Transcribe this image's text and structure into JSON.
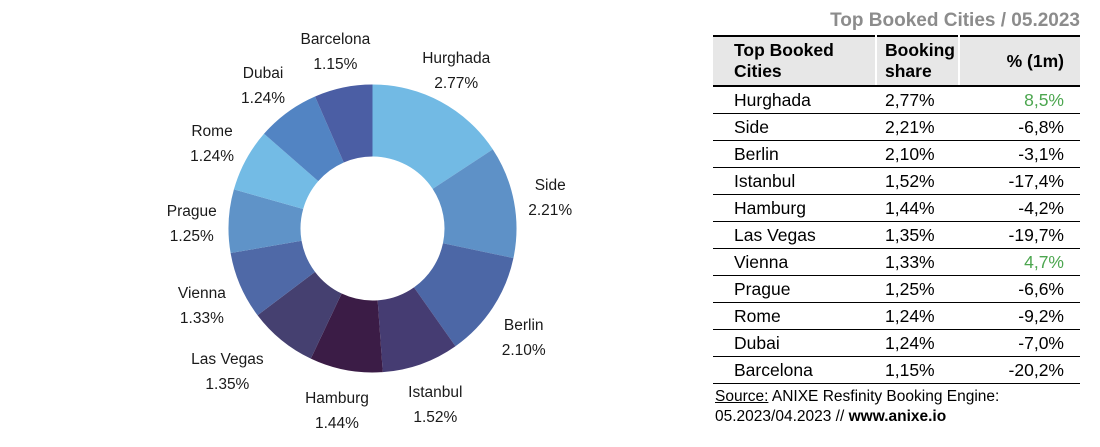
{
  "title": "Top Booked Cities / 05.2023",
  "chart_data": {
    "type": "pie",
    "subtype": "donut",
    "title": "",
    "categories": [
      "Hurghada",
      "Side",
      "Berlin",
      "Istanbul",
      "Hamburg",
      "Las Vegas",
      "Vienna",
      "Prague",
      "Rome",
      "Dubai",
      "Barcelona"
    ],
    "values": [
      2.77,
      2.21,
      2.1,
      1.52,
      1.44,
      1.35,
      1.33,
      1.25,
      1.24,
      1.24,
      1.15
    ],
    "labels": [
      "2.77%",
      "2.21%",
      "2.10%",
      "1.52%",
      "1.44%",
      "1.35%",
      "1.33%",
      "1.25%",
      "1.24%",
      "1.24%",
      "1.15%"
    ],
    "colors": [
      "#72BAE4",
      "#5E91C7",
      "#4C67A6",
      "#453C72",
      "#3B1C46",
      "#454070",
      "#4F69A7",
      "#5F93C8",
      "#73BBE5",
      "#5284C3",
      "#4B5EA4"
    ],
    "unit": "%",
    "start_angle_deg": 0,
    "direction": "clockwise",
    "hole_ratio": 0.5,
    "legend": "none"
  },
  "table": {
    "columns": [
      "Top Booked Cities",
      "Booking share",
      "% (1m)"
    ],
    "rows": [
      {
        "city": "Hurghada",
        "share": "2,77%",
        "change": "8,5%",
        "positive": true
      },
      {
        "city": "Side",
        "share": "2,21%",
        "change": "-6,8%",
        "positive": false
      },
      {
        "city": "Berlin",
        "share": "2,10%",
        "change": "-3,1%",
        "positive": false
      },
      {
        "city": "Istanbul",
        "share": "1,52%",
        "change": "-17,4%",
        "positive": false
      },
      {
        "city": "Hamburg",
        "share": "1,44%",
        "change": "-4,2%",
        "positive": false
      },
      {
        "city": "Las Vegas",
        "share": "1,35%",
        "change": "-19,7%",
        "positive": false
      },
      {
        "city": "Vienna",
        "share": "1,33%",
        "change": "4,7%",
        "positive": true
      },
      {
        "city": "Prague",
        "share": "1,25%",
        "change": "-6,6%",
        "positive": false
      },
      {
        "city": "Rome",
        "share": "1,24%",
        "change": "-9,2%",
        "positive": false
      },
      {
        "city": "Dubai",
        "share": "1,24%",
        "change": "-7,0%",
        "positive": false
      },
      {
        "city": "Barcelona",
        "share": "1,15%",
        "change": "-20,2%",
        "positive": false
      }
    ]
  },
  "source": {
    "label": "Source:",
    "text": " ANIXE Resfinity Booking Engine:",
    "line2": "05.2023/04.2023 // ",
    "website": "www.anixe.io"
  },
  "colors": {
    "positive": "#4CA64F",
    "title": "#8C8C8C",
    "header_bg": "#E7E7E7",
    "border": "#000000",
    "label_text": "#1A1A1A"
  }
}
